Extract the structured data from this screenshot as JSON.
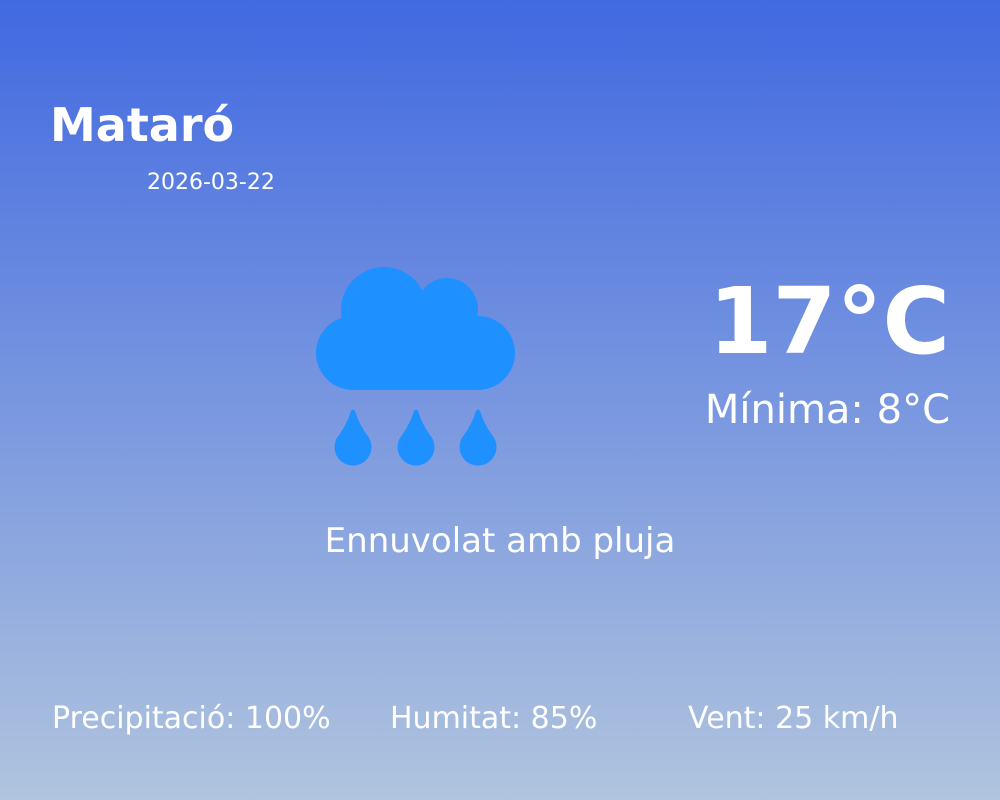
{
  "location": {
    "city": "Mataró",
    "date": "2026-03-22"
  },
  "weather": {
    "icon": "cloud-rain-icon",
    "icon_color": "#1E90FF",
    "temperature": "17°C",
    "minimum": "Mínima: 8°C",
    "description": "Ennuvolat amb pluja"
  },
  "stats": {
    "precipitation": "Precipitació: 100%",
    "humidity": "Humitat: 85%",
    "wind": "Vent: 25 km/h"
  },
  "colors": {
    "gradient_top": "#4169E1",
    "gradient_bottom": "#B0C4DE",
    "text": "#FFFFFF"
  }
}
